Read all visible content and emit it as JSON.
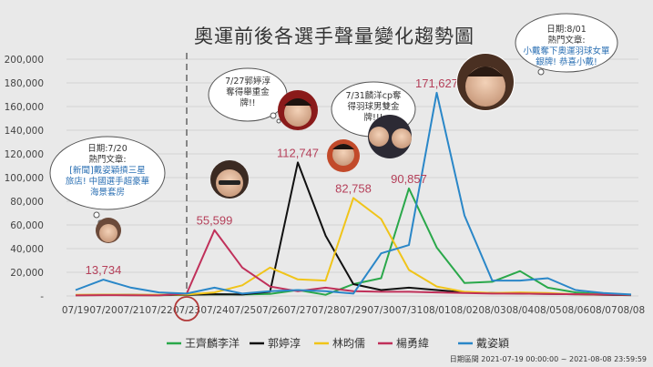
{
  "chart_data": {
    "type": "line",
    "title": "奧運前後各選手聲量變化趨勢圖",
    "categories": [
      "07/19",
      "07/20",
      "07/21",
      "07/22",
      "07/23",
      "07/24",
      "07/25",
      "07/26",
      "07/27",
      "07/28",
      "07/29",
      "07/30",
      "07/31",
      "08/01",
      "08/02",
      "08/03",
      "08/04",
      "08/05",
      "08/06",
      "08/07",
      "08/08"
    ],
    "y_ticks": [
      "-",
      "20,000",
      "40,000",
      "60,000",
      "80,000",
      "100,000",
      "120,000",
      "140,000",
      "160,000",
      "180,000",
      "200,000"
    ],
    "ylim": [
      0,
      200000
    ],
    "grid": true,
    "legend_position": "bottom",
    "series": [
      {
        "name": "王齊麟李洋",
        "color": "#2aa84a",
        "values": [
          600,
          800,
          700,
          600,
          900,
          1500,
          1200,
          1800,
          5000,
          1000,
          10000,
          15000,
          90857,
          41000,
          11000,
          12000,
          21000,
          7000,
          3000,
          1500,
          800
        ]
      },
      {
        "name": "郭婷淳",
        "color": "#111111",
        "values": [
          800,
          1000,
          900,
          800,
          1000,
          1500,
          1200,
          3500,
          112747,
          51000,
          10000,
          5000,
          7000,
          5000,
          3000,
          2500,
          2000,
          1800,
          1500,
          1000,
          700
        ]
      },
      {
        "name": "林昀儒",
        "color": "#f0c419",
        "values": [
          900,
          1100,
          1000,
          1000,
          1200,
          3000,
          9000,
          24000,
          14000,
          13000,
          82758,
          65000,
          22000,
          8000,
          3500,
          2500,
          3000,
          2500,
          1500,
          1200,
          900
        ]
      },
      {
        "name": "楊勇緯",
        "color": "#c0305a",
        "values": [
          500,
          700,
          600,
          500,
          2000,
          55599,
          24000,
          8000,
          4000,
          7000,
          4000,
          3500,
          3500,
          3000,
          2500,
          2000,
          2000,
          1800,
          1500,
          1200,
          900
        ]
      },
      {
        "name": "戴姿穎",
        "color": "#2a87c8",
        "values": [
          5000,
          13734,
          7000,
          3000,
          2000,
          7000,
          2000,
          4000,
          5000,
          4000,
          2000,
          36000,
          43000,
          171627,
          68000,
          13000,
          13000,
          15000,
          5000,
          2500,
          1200
        ]
      }
    ],
    "peak_labels": [
      {
        "text": "13,734",
        "series": 4,
        "index": 1
      },
      {
        "text": "55,599",
        "series": 3,
        "index": 5
      },
      {
        "text": "112,747",
        "series": 1,
        "index": 8
      },
      {
        "text": "82,758",
        "series": 2,
        "index": 10
      },
      {
        "text": "90,857",
        "series": 0,
        "index": 12
      },
      {
        "text": "171,627",
        "series": 4,
        "index": 13
      }
    ],
    "marker_date": "07/23",
    "date_range": "日期區間 2021-07-19 00:00:00 ~ 2021-08-08 23:59:59"
  },
  "bubbles": {
    "b1": {
      "lines": [
        "日期:7/20",
        "熱門文章:"
      ],
      "links": [
        "[新聞]戴姿穎摃三星",
        "旅店! 中國選手超豪華",
        "海景套房"
      ]
    },
    "b2": {
      "lines": [
        "7/27郭婷淳",
        "奪得舉重金",
        "牌!!"
      ]
    },
    "b3": {
      "lines": [
        "7/31麟洋cp奪",
        "得羽球男雙金",
        "牌!!!"
      ]
    },
    "b4": {
      "lines": [
        "日期:8/01",
        "熱門文章:"
      ],
      "links": [
        "小戴奪下奧運羽球女單",
        "銀牌! 恭喜小戴!"
      ]
    }
  }
}
